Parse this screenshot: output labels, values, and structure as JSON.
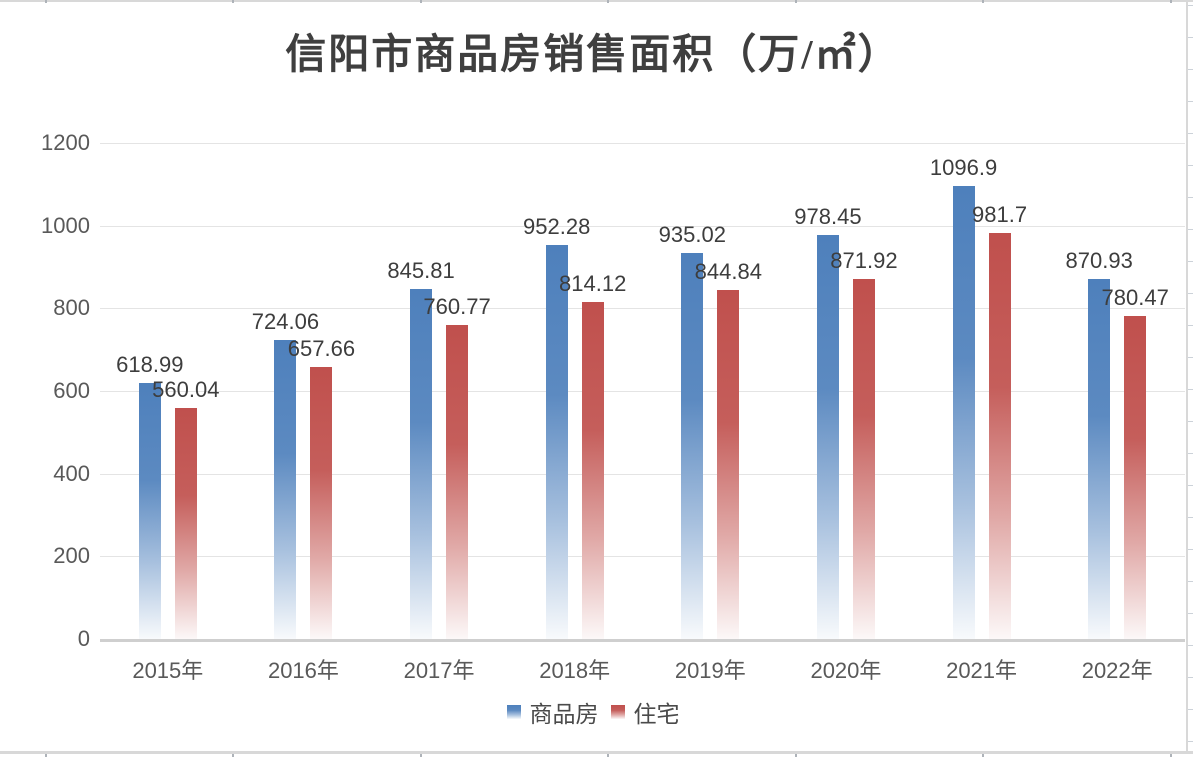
{
  "chart_data": {
    "type": "bar",
    "title": "信阳市商品房销售面积（万/㎡）",
    "categories": [
      "2015年",
      "2016年",
      "2017年",
      "2018年",
      "2019年",
      "2020年",
      "2021年",
      "2022年"
    ],
    "series": [
      {
        "name": "商品房",
        "color": "#4e80bc",
        "values": [
          618.99,
          724.06,
          845.81,
          952.28,
          935.02,
          978.45,
          1096.9,
          870.93
        ]
      },
      {
        "name": "住宅",
        "color": "#c0504d",
        "values": [
          560.04,
          657.66,
          760.77,
          814.12,
          844.84,
          871.92,
          981.7,
          780.47
        ]
      }
    ],
    "y_axis": {
      "min": 0,
      "max": 1200,
      "step": 200,
      "ticks": [
        0,
        200,
        400,
        600,
        800,
        1000,
        1200
      ]
    },
    "xlabel": "",
    "ylabel": "",
    "legend": {
      "position": "bottom",
      "items": [
        "商品房",
        "住宅"
      ]
    },
    "grid": true,
    "data_labels": "outside-end",
    "bar_style": "vertical gradient fading to white at base"
  },
  "colors": {
    "series1": "#4e80bc",
    "series2": "#c0504d",
    "gridline": "#e4e4e4",
    "axis_line": "#cfcfcf",
    "axis_text": "#595959",
    "value_label_text": "#3d3d3d",
    "title_text": "#3f3f3f",
    "background": "#ffffff"
  }
}
